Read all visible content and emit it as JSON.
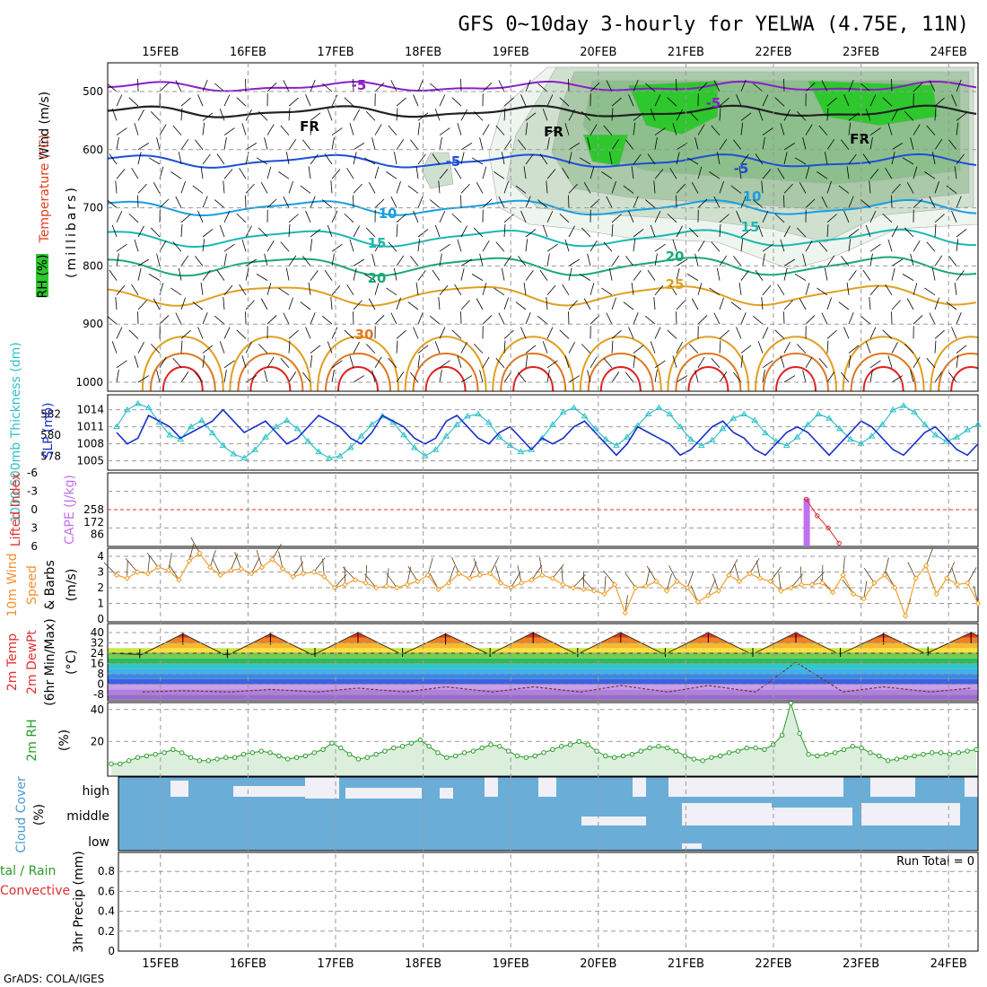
{
  "title": "GFS 0~10day 3-hourly for YELWA (4.75E, 11N)",
  "footer": "GrADS: COLA/IGES",
  "dates": [
    "15FEB",
    "16FEB",
    "17FEB",
    "18FEB",
    "19FEB",
    "20FEB",
    "21FEB",
    "22FEB",
    "23FEB",
    "24FEB"
  ],
  "colors": {
    "temp_purple": "#8a1fc8",
    "temp_blue": "#1e4fd8",
    "temp_lightblue": "#1a9ee0",
    "temp_teal": "#1ab8b0",
    "temp_green": "#1aa878",
    "temp_orange": "#e0a020",
    "temp_darkorange": "#e07820",
    "temp_red": "#e02020",
    "slp": "#1830c8",
    "thickness": "#30c0c8",
    "cape": "#c070f0",
    "lifted_index": "#e03030",
    "wind_speed": "#f0a030",
    "barb": "#5a3a1a",
    "rh2m": "#2a9a2a",
    "cloud": "#6aaed8",
    "cloud_clear": "#f0f0f6"
  },
  "panels": {
    "upper": {
      "ylabel_wind": "Wind (m/s)",
      "ylabel_temp": "Temperature (°C)",
      "ylabel_rh": "RH (%)",
      "ylabel_p": "(millibars)",
      "pressure_ticks": [
        "500",
        "600",
        "700",
        "800",
        "900",
        "1000"
      ],
      "contour_labels": [
        {
          "text": "-5",
          "color": "temp_purple"
        },
        {
          "text": "-5",
          "color": "temp_purple"
        },
        {
          "text": "FR",
          "color": "black"
        },
        {
          "text": "FR",
          "color": "black"
        },
        {
          "text": "FR",
          "color": "black"
        },
        {
          "text": "-5",
          "color": "temp_blue"
        },
        {
          "text": "-5",
          "color": "temp_blue"
        },
        {
          "text": "10",
          "color": "temp_lightblue"
        },
        {
          "text": "10",
          "color": "temp_lightblue"
        },
        {
          "text": "15",
          "color": "temp_teal"
        },
        {
          "text": "15",
          "color": "temp_teal"
        },
        {
          "text": "20",
          "color": "temp_green"
        },
        {
          "text": "20",
          "color": "temp_green"
        },
        {
          "text": "25",
          "color": "temp_orange"
        },
        {
          "text": "30",
          "color": "temp_darkorange"
        }
      ]
    },
    "slp": {
      "ylabel_thick": "1000-500mb Thickness (dm)",
      "ylabel_slp": "SLP (mb)",
      "thick_ticks": [
        "582",
        "580",
        "578"
      ],
      "slp_ticks": [
        "1014",
        "1011",
        "1008",
        "1005"
      ]
    },
    "cape": {
      "ylabel_li": "Lifted Index",
      "ylabel_cape": "CAPE (J/kg)",
      "li_ticks": [
        "-6",
        "-3",
        "0",
        "3",
        "6"
      ],
      "cape_ticks": [
        "258",
        "172",
        "86"
      ]
    },
    "wind10": {
      "ylabel": "10m Wind Speed & Barbs (m/s)",
      "ylabel_a": "10m Wind",
      "ylabel_b": "Speed",
      "ylabel_c": "& Barbs",
      "ylabel_units": "(m/s)",
      "ticks": [
        "4",
        "3",
        "2",
        "1",
        "0"
      ]
    },
    "temp2m": {
      "ylabel_a": "2m Temp",
      "ylabel_b": "2m DewPt",
      "ylabel_c": "(6hr Min/Max)",
      "ylabel_units": "(°C)",
      "ticks": [
        "40",
        "32",
        "24",
        "16",
        "8",
        "0",
        "-8"
      ]
    },
    "rh2m": {
      "ylabel": "2m RH",
      "ylabel_units": "(%)",
      "ticks": [
        "40",
        "20"
      ]
    },
    "cloud": {
      "ylabel": "Cloud Cover",
      "ylabel_units": "(%)",
      "levels": [
        "high",
        "middle",
        "low"
      ]
    },
    "precip": {
      "ylabel_a": "tal / Rain",
      "ylabel_b": "Convective",
      "ylabel_c": "3hr Precip (mm)",
      "ticks": [
        "0.8",
        "0.6",
        "0.4",
        "0.2",
        "0"
      ],
      "run_total": "Run Total = 0"
    }
  },
  "chart_data": [
    {
      "type": "line",
      "title": "1000-500mb Thickness (dm) / SLP (mb)",
      "series": [
        {
          "name": "SLP (mb)",
          "axis": "right",
          "values": [
            1010,
            1008,
            1009,
            1013,
            1012,
            1011,
            1009,
            1010,
            1011,
            1012,
            1014,
            1012,
            1010,
            1011,
            1012,
            1010,
            1008,
            1009,
            1011,
            1013,
            1012,
            1011,
            1009,
            1008,
            1010,
            1013,
            1012,
            1011,
            1009,
            1008,
            1009,
            1012,
            1013,
            1011,
            1009,
            1008,
            1010,
            1011,
            1009,
            1007,
            1009,
            1008,
            1009,
            1011,
            1012,
            1010,
            1008,
            1006,
            1008,
            1011,
            1010,
            1009,
            1008,
            1006,
            1007,
            1009,
            1011,
            1012,
            1010,
            1009,
            1007,
            1006,
            1008,
            1010,
            1011,
            1010,
            1008,
            1006,
            1008,
            1010,
            1012,
            1011,
            1009,
            1007,
            1006,
            1008,
            1010,
            1011,
            1009,
            1007,
            1006,
            1008
          ]
        },
        {
          "name": "1000-500mb Thickness (dm)",
          "axis": "left",
          "values": [
            580.8,
            582.4,
            583.0,
            582.6,
            581.2,
            580.0,
            579.6,
            580.8,
            581.4,
            580.2,
            579.0,
            578.2,
            577.8,
            578.6,
            579.8,
            580.8,
            581.4,
            580.6,
            579.4,
            578.4,
            577.8,
            578.0,
            578.8,
            579.9,
            581.0,
            581.8,
            581.2,
            580.0,
            578.8,
            578.0,
            578.6,
            579.9,
            581.0,
            581.8,
            582.0,
            581.2,
            579.8,
            579.0,
            578.4,
            578.6,
            579.7,
            581.0,
            582.2,
            582.6,
            581.8,
            580.6,
            579.6,
            579.0,
            579.8,
            580.9,
            582.0,
            582.6,
            582.0,
            580.8,
            579.6,
            579.0,
            579.5,
            580.6,
            581.6,
            582.0,
            581.4,
            580.2,
            579.4,
            579.0,
            579.8,
            581.0,
            582.0,
            581.6,
            580.6,
            579.6,
            579.2,
            579.9,
            581.0,
            582.4,
            582.8,
            582.2,
            581.0,
            580.0,
            579.4,
            579.8,
            580.5,
            581.0
          ]
        }
      ],
      "ylim_slp": [
        1004,
        1016
      ],
      "ylim_thick": [
        577,
        583.5
      ]
    },
    {
      "type": "bar",
      "title": "CAPE (J/kg) / Lifted Index",
      "series": [
        {
          "name": "CAPE (J/kg)",
          "values_at": [
            {
              "x": "22FEB 09Z",
              "value": 340
            }
          ]
        },
        {
          "name": "Lifted Index",
          "values_at": [
            {
              "x": "22FEB 09Z",
              "value": -1.7
            },
            {
              "x": "22FEB 12Z",
              "value": 1.0
            },
            {
              "x": "22FEB 15Z",
              "value": 3.0
            },
            {
              "x": "22FEB 18Z",
              "value": 5.5
            }
          ]
        }
      ]
    },
    {
      "type": "line",
      "title": "10m Wind Speed (m/s)",
      "series": [
        {
          "name": "Speed",
          "values": [
            2.8,
            2.6,
            3.0,
            2.9,
            3.3,
            3.1,
            2.5,
            3.7,
            4.2,
            3.3,
            2.8,
            3.1,
            3.2,
            2.9,
            3.3,
            3.8,
            3.2,
            2.7,
            2.9,
            3.0,
            2.7,
            2.0,
            2.2,
            2.5,
            2.3,
            2.0,
            2.1,
            2.0,
            2.2,
            2.4,
            2.8,
            1.9,
            2.3,
            2.9,
            2.6,
            2.8,
            2.9,
            2.3,
            2.0,
            2.3,
            2.5,
            2.8,
            2.6,
            2.2,
            2.0,
            1.9,
            1.8,
            1.6,
            2.2,
            0.4,
            2.0,
            2.1,
            2.4,
            1.8,
            2.4,
            2.0,
            1.1,
            1.5,
            1.8,
            2.8,
            2.4,
            2.9,
            2.6,
            2.4,
            1.8,
            2.0,
            2.2,
            2.2,
            2.3,
            1.7,
            2.8,
            1.6,
            1.3,
            2.3,
            2.8,
            2.0,
            0.2,
            2.6,
            3.4,
            1.6,
            2.6,
            2.2,
            2.3,
            1.0
          ]
        }
      ],
      "ylim": [
        0,
        4.5
      ]
    },
    {
      "type": "area",
      "title": "2m Temp / 2m DewPt (°C)",
      "series": [
        {
          "name": "2m Temp daily max",
          "values": [
            39,
            39,
            40,
            39,
            40,
            40,
            40,
            40,
            39,
            40
          ]
        },
        {
          "name": "2m Temp daily min",
          "values": [
            23,
            23,
            24,
            24,
            24,
            24,
            24,
            24,
            24,
            25
          ]
        },
        {
          "name": "2m DewPt",
          "values": [
            -5,
            -4,
            -3,
            -2,
            -2,
            -1,
            -1,
            17,
            -2,
            -3
          ]
        }
      ],
      "ylim": [
        -12,
        44
      ]
    },
    {
      "type": "area",
      "title": "2m RH (%)",
      "series": [
        {
          "name": "2m RH",
          "values": [
            6,
            6,
            8,
            10,
            11,
            12,
            13,
            15,
            13,
            10,
            8,
            8,
            9,
            10,
            10,
            12,
            13,
            14,
            13,
            11,
            9,
            10,
            11,
            13,
            15,
            19,
            16,
            12,
            9,
            10,
            12,
            14,
            16,
            17,
            19,
            21,
            17,
            13,
            10,
            11,
            13,
            14,
            16,
            18,
            17,
            14,
            11,
            10,
            11,
            13,
            15,
            17,
            18,
            20,
            18,
            14,
            11,
            10,
            11,
            12,
            14,
            16,
            17,
            16,
            14,
            11,
            9,
            8,
            10,
            11,
            13,
            14,
            16,
            16,
            15,
            18,
            24,
            44,
            25,
            12,
            11,
            12,
            13,
            15,
            17,
            16,
            13,
            11,
            8,
            9,
            10,
            11,
            12,
            13,
            13,
            12,
            13,
            14,
            15
          ]
        }
      ],
      "ylim": [
        0,
        48
      ]
    },
    {
      "type": "heatmap",
      "title": "Cloud Cover (%)",
      "series": [
        {
          "name": "high",
          "note": "mostly 100% with clearings near 17FEB, 19FEB-20FEB, 21FEB-23FEB"
        },
        {
          "name": "middle",
          "note": "100% until 20FEB, partial gaps from 20FEB to 24FEB"
        },
        {
          "name": "low",
          "note": "100% with a small gap near 21FEB"
        }
      ]
    },
    {
      "type": "bar",
      "title": "3hr Precip (mm)",
      "series": [
        {
          "name": "Total / Rain",
          "values": []
        },
        {
          "name": "Convective",
          "values": []
        }
      ],
      "ylim": [
        0,
        0.9
      ],
      "run_total": 0
    }
  ]
}
